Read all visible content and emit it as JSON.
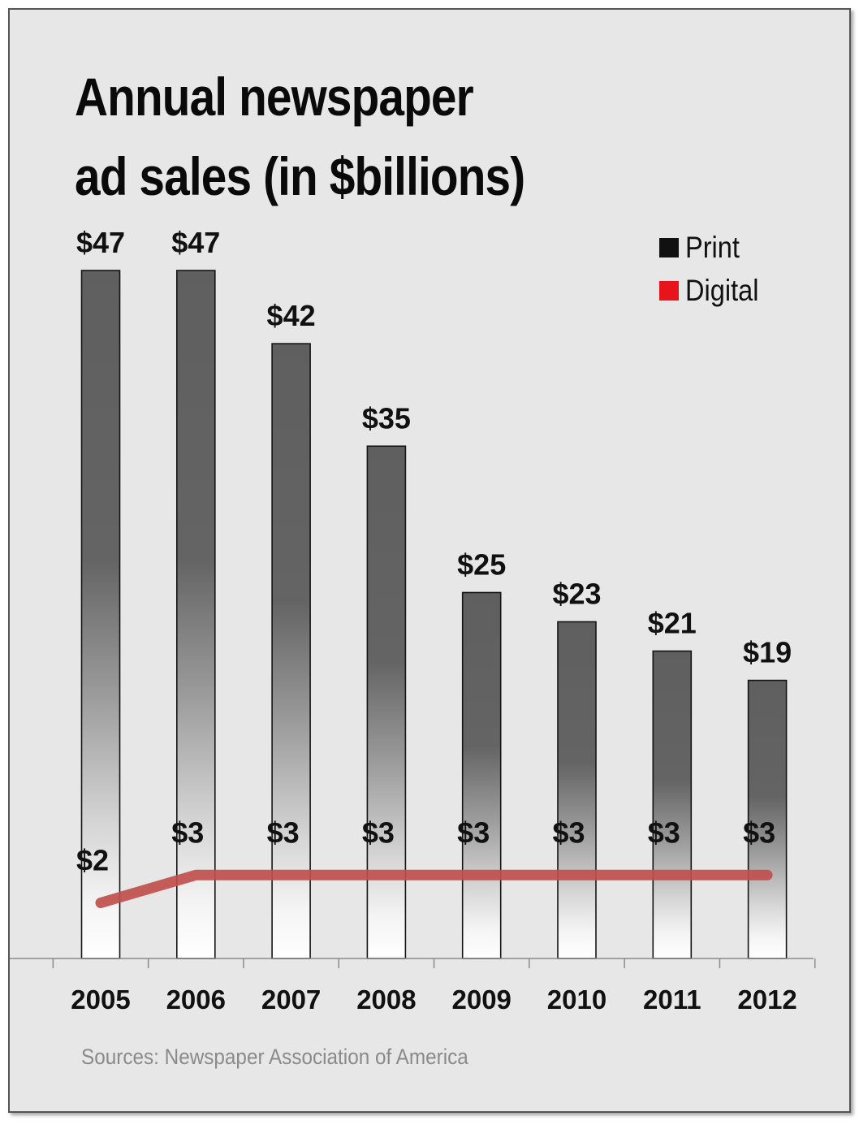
{
  "chart_data": {
    "type": "bar",
    "title_line1": "Annual newspaper",
    "title_line2": "ad sales (in $billions)",
    "categories": [
      "2005",
      "2006",
      "2007",
      "2008",
      "2009",
      "2010",
      "2011",
      "2012"
    ],
    "series": [
      {
        "name": "Print",
        "type": "bar",
        "color": "#111111",
        "values": [
          47,
          47,
          42,
          35,
          25,
          23,
          21,
          19
        ],
        "labels": [
          "$47",
          "$47",
          "$42",
          "$35",
          "$25",
          "$23",
          "$21",
          "$19"
        ]
      },
      {
        "name": "Digital",
        "type": "line",
        "color": "#e8141c",
        "line_color": "#c0504d",
        "values": [
          2,
          3,
          3,
          3,
          3,
          3,
          3,
          3
        ],
        "labels": [
          "$2",
          "$3",
          "$3",
          "$3",
          "$3",
          "$3",
          "$3",
          "$3"
        ]
      }
    ],
    "ylim": [
      0,
      50
    ],
    "grid": false,
    "legend": "top-right",
    "source": "Sources: Newspaper Association of America"
  }
}
